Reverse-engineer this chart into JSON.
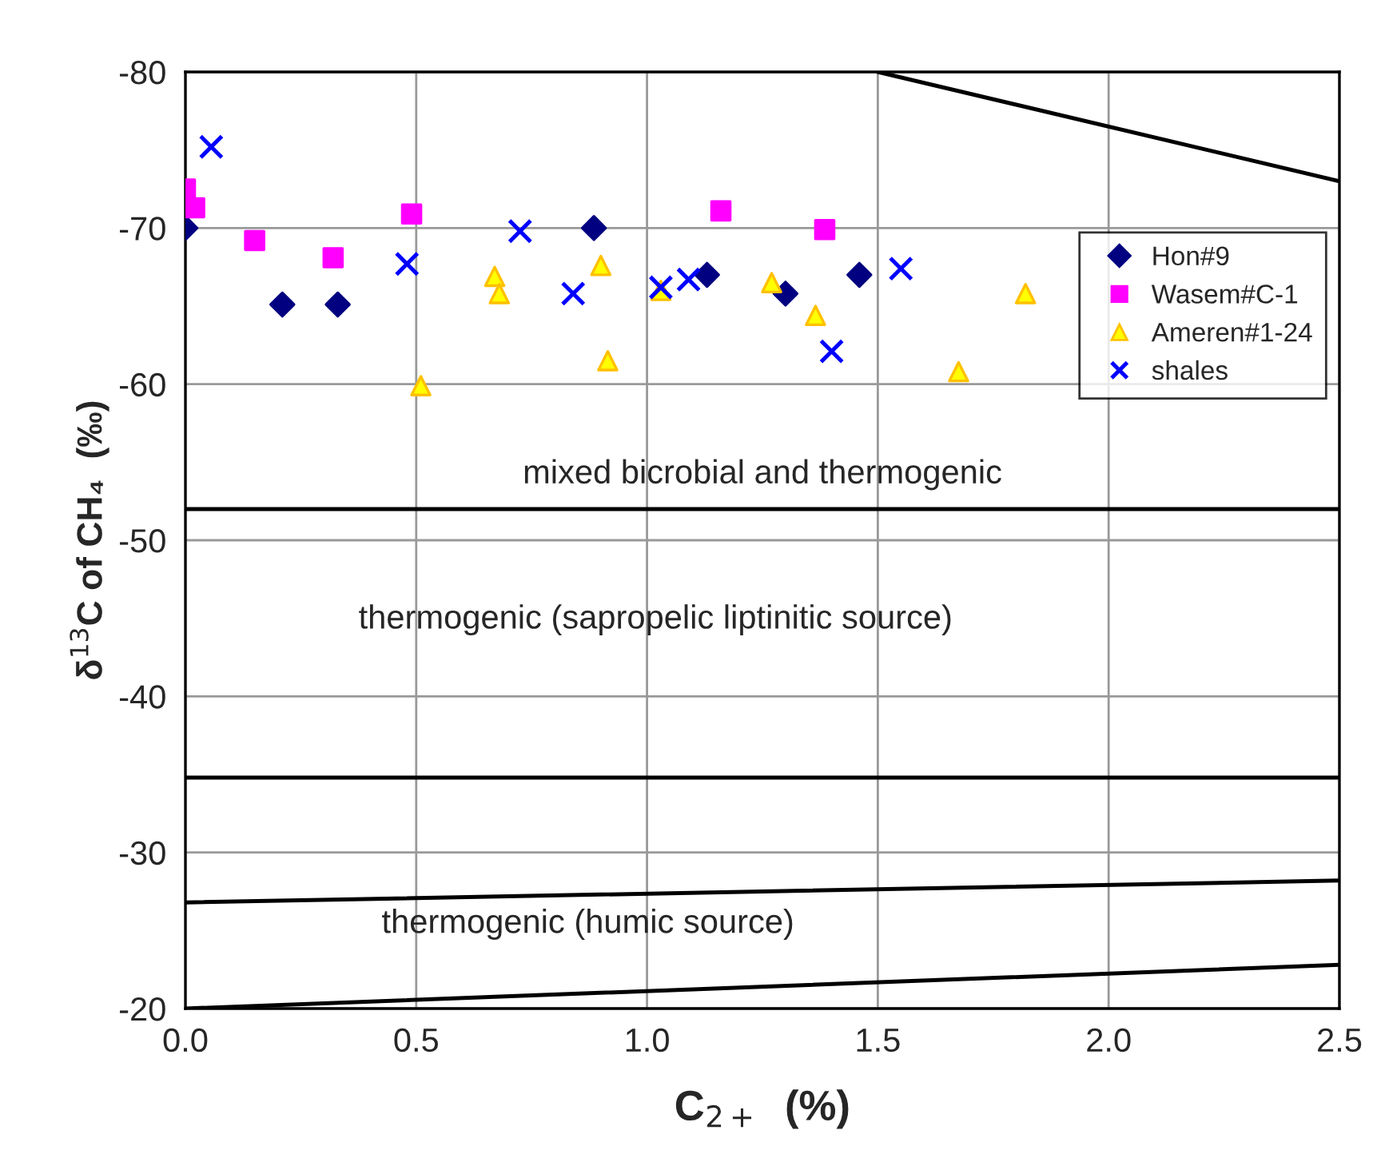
{
  "chart_data": {
    "type": "scatter",
    "xlabel": "C$_{2+}$  (%)",
    "ylabel": "δ$^{13}$C of CH₄  (‰)",
    "xlim": [
      0,
      2.5
    ],
    "ylim": [
      -20,
      -80
    ],
    "xticks": [
      {
        "value": 0,
        "label": "0.0"
      },
      {
        "value": 0.5,
        "label": "0.5"
      },
      {
        "value": 1.0,
        "label": "1.0"
      },
      {
        "value": 1.5,
        "label": "1.5"
      },
      {
        "value": 2.0,
        "label": "2.0"
      },
      {
        "value": 2.5,
        "label": "2.5"
      }
    ],
    "yticks": [
      -80,
      -70,
      -60,
      -50,
      -40,
      -30,
      -20
    ],
    "grid": true,
    "legend": "right",
    "series": [
      {
        "name": "Hon#9",
        "marker": "diamond",
        "color": "#000080",
        "x": [
          0.0,
          0.21,
          0.33,
          0.885,
          1.13,
          1.3,
          1.46
        ],
        "values": [
          -70.0,
          -65.1,
          -65.1,
          -70.0,
          -67.0,
          -65.8,
          -67.0
        ]
      },
      {
        "name": "Wasem#C-1",
        "marker": "square",
        "color": "#ff00ff",
        "x": [
          0.0,
          0.02,
          0.15,
          0.32,
          0.49,
          1.16,
          1.385
        ],
        "values": [
          -72.5,
          -71.3,
          -69.2,
          -68.1,
          -70.9,
          -71.1,
          -69.9
        ]
      },
      {
        "name": "Ameren#1-24",
        "marker": "triangle",
        "color": "#ffff00",
        "x": [
          0.51,
          0.67,
          0.68,
          0.9,
          0.915,
          1.03,
          1.27,
          1.365,
          1.675,
          1.82
        ],
        "values": [
          -59.9,
          -66.9,
          -65.8,
          -67.6,
          -61.5,
          -66.0,
          -66.5,
          -64.4,
          -60.8,
          -65.8
        ]
      },
      {
        "name": "shales",
        "marker": "cross",
        "color": "#0000ff",
        "x": [
          0.056,
          0.48,
          0.725,
          0.84,
          1.03,
          1.09,
          1.4,
          1.55
        ],
        "values": [
          -75.2,
          -67.7,
          -69.8,
          -65.8,
          -66.2,
          -66.7,
          -62.1,
          -67.4
        ]
      },
      {
        "type": "line",
        "marker": "none",
        "color": "#000000",
        "x": [
          1.5,
          2.5
        ],
        "values": [
          -80,
          -73
        ]
      },
      {
        "type": "line",
        "marker": "none",
        "color": "#000000",
        "x": [
          0,
          2.5
        ],
        "values": [
          -52,
          -52
        ]
      },
      {
        "type": "line",
        "marker": "none",
        "color": "#000000",
        "x": [
          0,
          2.5
        ],
        "values": [
          -34.8,
          -34.8
        ]
      },
      {
        "type": "line",
        "marker": "none",
        "color": "#000000",
        "x": [
          0,
          2.5
        ],
        "values": [
          -26.8,
          -28.2
        ]
      },
      {
        "type": "line",
        "marker": "none",
        "color": "#000000",
        "x": [
          0,
          2.5
        ],
        "values": [
          -20,
          -22.8
        ]
      }
    ],
    "annotations": [
      "mixed bicrobial and thermogenic",
      "thermogenic (sapropelic liptinitic source)",
      "thermogenic (humic source)"
    ]
  }
}
